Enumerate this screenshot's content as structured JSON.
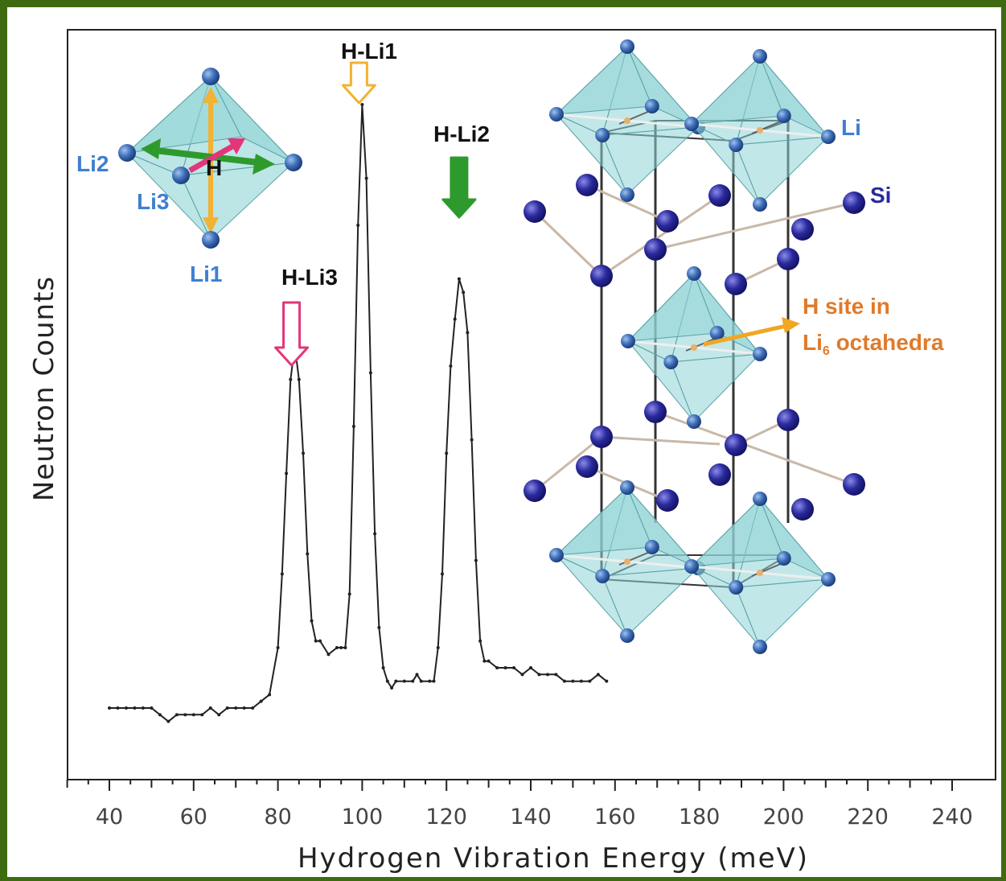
{
  "chart_data": {
    "type": "line",
    "xlabel": "Hydrogen Vibration Energy (meV)",
    "ylabel": "Neutron Counts",
    "xlim": [
      30,
      240
    ],
    "ylim": [
      0,
      1
    ],
    "xticks": [
      40,
      60,
      80,
      100,
      120,
      140,
      160,
      180,
      200,
      220,
      240
    ],
    "series": [
      {
        "x": [
          40,
          42,
          44,
          46,
          48,
          50,
          52,
          54,
          56,
          58,
          60,
          62,
          64,
          66,
          68,
          70,
          72,
          74,
          76,
          78,
          80,
          81,
          82,
          83,
          84,
          85,
          86,
          87,
          88,
          89,
          90,
          92,
          94,
          95,
          96,
          97,
          98,
          99,
          100,
          101,
          102,
          103,
          104,
          105,
          106,
          107,
          108,
          110,
          112,
          113,
          114,
          116,
          117,
          118,
          119,
          120,
          121,
          122,
          123,
          124,
          125,
          126,
          127,
          128,
          129,
          130,
          132,
          134,
          136,
          138,
          140,
          142,
          144,
          146,
          148,
          150,
          152,
          154,
          156,
          158
        ],
        "y": [
          0.1,
          0.1,
          0.1,
          0.1,
          0.1,
          0.1,
          0.09,
          0.08,
          0.09,
          0.09,
          0.09,
          0.09,
          0.1,
          0.09,
          0.1,
          0.1,
          0.1,
          0.1,
          0.11,
          0.12,
          0.19,
          0.3,
          0.45,
          0.59,
          0.64,
          0.59,
          0.48,
          0.33,
          0.23,
          0.2,
          0.2,
          0.18,
          0.19,
          0.19,
          0.19,
          0.27,
          0.52,
          0.82,
          1.0,
          0.89,
          0.6,
          0.36,
          0.22,
          0.16,
          0.14,
          0.13,
          0.14,
          0.14,
          0.14,
          0.15,
          0.14,
          0.14,
          0.14,
          0.19,
          0.3,
          0.48,
          0.61,
          0.68,
          0.74,
          0.72,
          0.66,
          0.5,
          0.32,
          0.2,
          0.17,
          0.17,
          0.16,
          0.16,
          0.16,
          0.15,
          0.16,
          0.15,
          0.15,
          0.15,
          0.14,
          0.14,
          0.14,
          0.14,
          0.15,
          0.14
        ]
      }
    ],
    "peaks": [
      {
        "label": "H-Li1",
        "x": 100
      },
      {
        "label": "H-Li2",
        "x": 123
      },
      {
        "label": "H-Li3",
        "x": 84
      }
    ],
    "annotations": {
      "li": "Li",
      "si": "Si",
      "li1": "Li1",
      "li2": "Li2",
      "li3": "Li3",
      "h": "H",
      "site_line1": "H site in",
      "site_line2_prefix": "Li",
      "site_line2_sub": "6",
      "site_line2_suffix": " octahedra"
    },
    "colors": {
      "line": "#222222",
      "h_li1_arrow": "#f2b233",
      "h_li2_arrow": "#2e9a2e",
      "h_li3_arrow": "#e2367a",
      "li_atom": "#3f6fb8",
      "si_atom": "#2a2a9e",
      "octahedron": "#8fd3d6",
      "site_arrow": "#f2a623"
    }
  }
}
